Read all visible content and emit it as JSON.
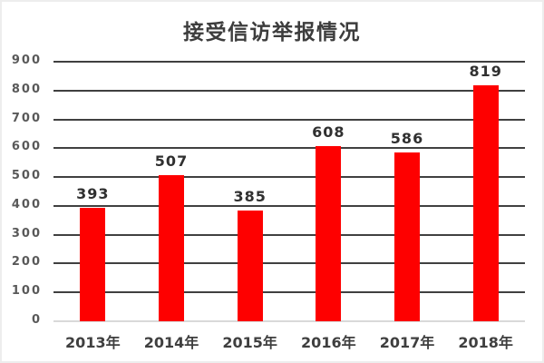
{
  "page": {
    "background": "#ffffff",
    "border_color": "#ededed"
  },
  "chart_data": {
    "type": "bar",
    "title": "接受信访举报情况",
    "categories": [
      "2013年",
      "2014年",
      "2015年",
      "2016年",
      "2017年",
      "2018年"
    ],
    "values": [
      393,
      507,
      385,
      608,
      586,
      819
    ],
    "xlabel": "",
    "ylabel": "",
    "ylim": [
      0,
      900
    ],
    "yticks": [
      0,
      100,
      200,
      300,
      400,
      500,
      600,
      700,
      800,
      900
    ],
    "grid": true,
    "legend_position": "none",
    "value_labels_shown": true,
    "colors": {
      "bar": "#fe0000",
      "gridline": "#404040",
      "baseline": "#d9d9d9",
      "title_text": "#3d3d3d",
      "ytick_text": "#595959",
      "value_label_text": "#303030",
      "xtick_text": "#3f3f3f"
    }
  }
}
